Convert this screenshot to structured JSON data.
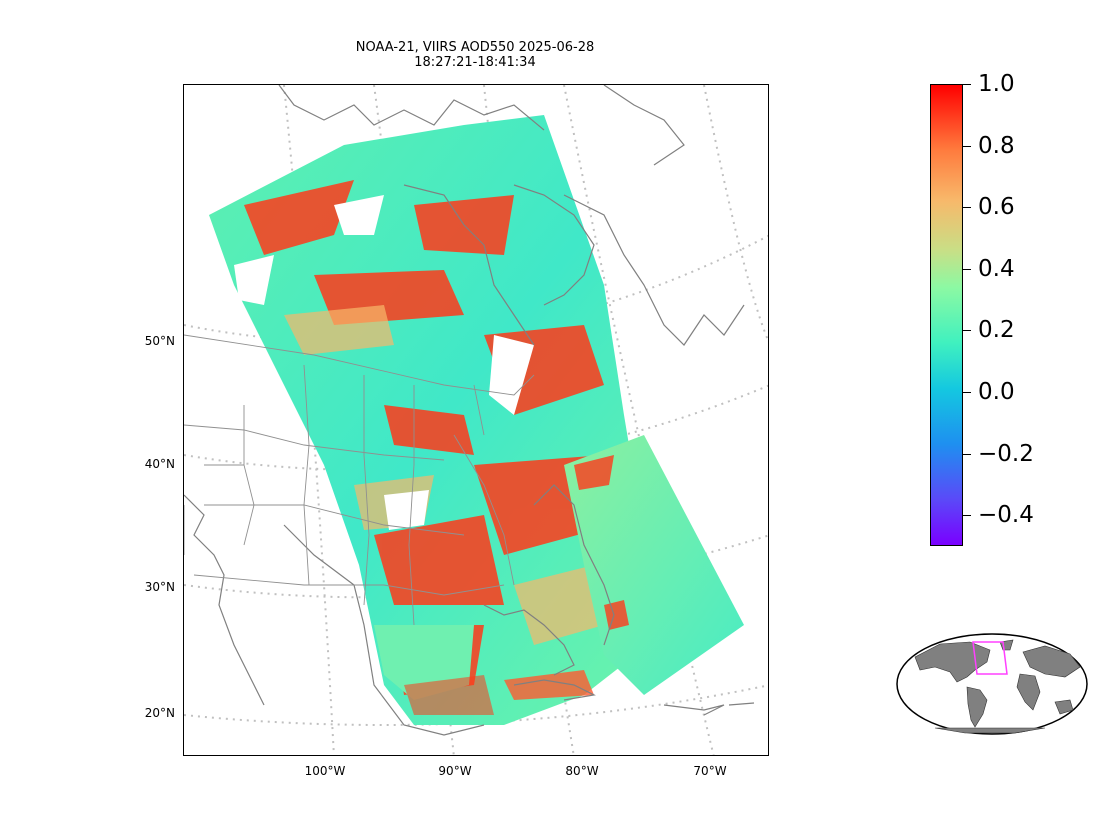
{
  "title": {
    "line1": "NOAA-21, VIIRS AOD550 2025-06-28",
    "line2": "18:27:21-18:41:34"
  },
  "lat_ticks": [
    "50°N",
    "40°N",
    "30°N",
    "20°N"
  ],
  "lon_ticks": [
    "100°W",
    "90°W",
    "80°W",
    "70°W"
  ],
  "colorbar": {
    "min": -0.5,
    "max": 1.0,
    "tick_labels": [
      "1.0",
      "0.8",
      "0.6",
      "0.4",
      "0.2",
      "0.0",
      "−0.2",
      "−0.4"
    ],
    "colormap": "rainbow"
  },
  "colors": {
    "coastline": "#808080",
    "graticule": "#c0c0c0",
    "high_aod": "#ff0000",
    "low_aod": "#40f1bf",
    "footprint_box": "#ff40ff",
    "land_inset": "#808080"
  }
}
